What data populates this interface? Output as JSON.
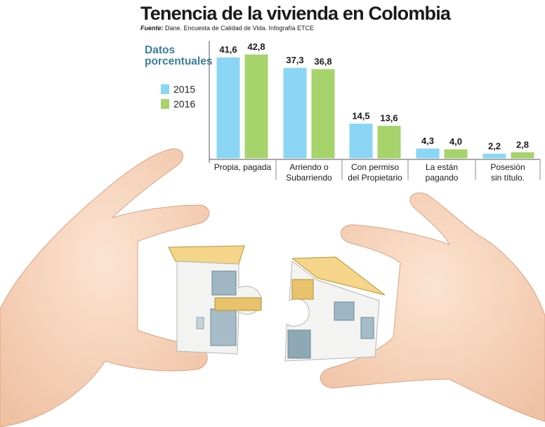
{
  "title": "Tenencia de la vivienda en Colombia",
  "source_label": "Fuente:",
  "source_text": "Dane. Encuesta de Calidad de Vida. Infografía ETCE",
  "units_line1": "Datos",
  "units_line2": "porcentuales",
  "colors": {
    "2015": "#8ad6f4",
    "2016": "#a6d36b",
    "title_accent": "#3b7f9a"
  },
  "chart_data": {
    "type": "bar",
    "categories": [
      [
        "Propia, pagada"
      ],
      [
        "Arriendo o",
        "Subarriendo"
      ],
      [
        "Con permiso",
        "del Propietario"
      ],
      [
        "La están",
        "pagando"
      ],
      [
        "Posesión",
        "sin título."
      ]
    ],
    "series": [
      {
        "name": "2015",
        "values": [
          41.6,
          37.3,
          14.5,
          4.3,
          2.2
        ],
        "labels": [
          "41,6",
          "37,3",
          "14,5",
          "4,3",
          "2,2"
        ]
      },
      {
        "name": "2016",
        "values": [
          42.8,
          36.8,
          13.6,
          4.0,
          2.8
        ],
        "labels": [
          "42,8",
          "36,8",
          "13,6",
          "4,0",
          "2,8"
        ]
      }
    ],
    "legend_position": "left",
    "grid": false
  }
}
